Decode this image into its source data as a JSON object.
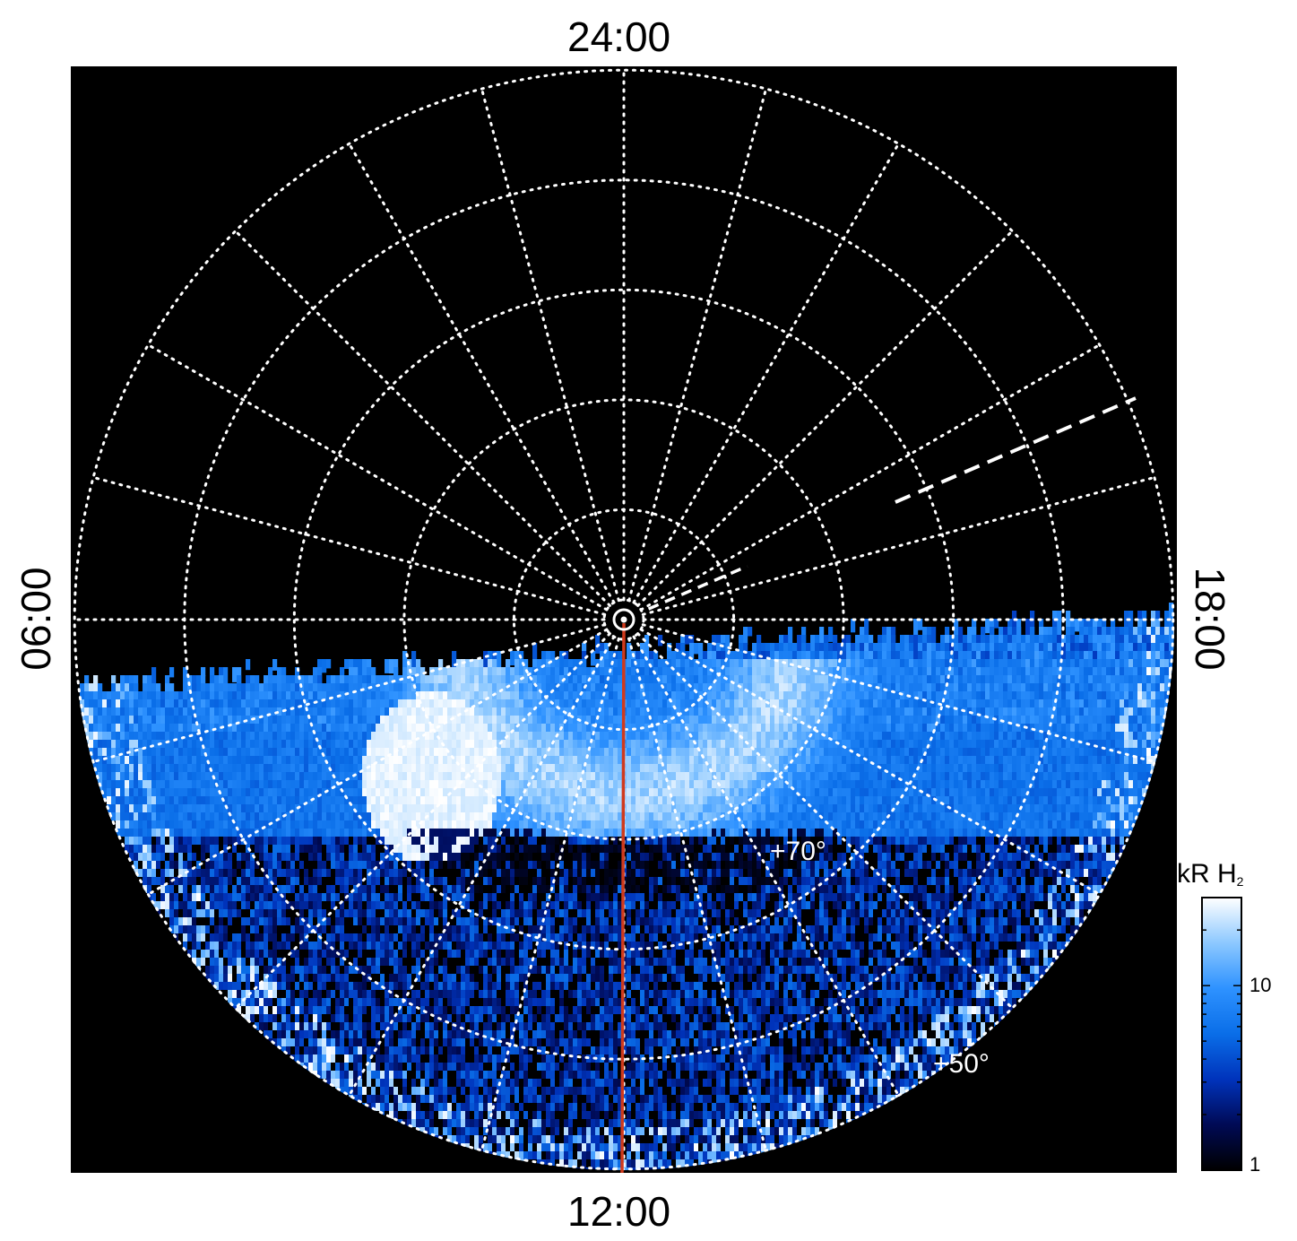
{
  "chart_data": {
    "type": "heatmap",
    "projection": "polar",
    "local_time_labels": {
      "top": "24:00",
      "bottom": "12:00",
      "left": "06:00",
      "right": "18:00"
    },
    "latitude_labels": [
      "+70°",
      "+50°"
    ],
    "latitude_circles_deg": [
      89,
      80,
      70,
      60,
      50,
      40
    ],
    "longitude_spokes_count": 24,
    "colorbar": {
      "title": "kR H",
      "title_subscript": "2",
      "ticks": [
        "1",
        "10"
      ],
      "scale": "log",
      "range": [
        1,
        30
      ],
      "colors": [
        "#000000",
        "#000a55",
        "#0033bb",
        "#0a6ee8",
        "#2e92ff",
        "#8cc8ff",
        "#ffffff"
      ]
    },
    "aurora_band": {
      "description_absent": true
    },
    "colors": {
      "background": "#000000",
      "grid": "#ffffff",
      "meridian_line": "#d03a1c"
    }
  }
}
